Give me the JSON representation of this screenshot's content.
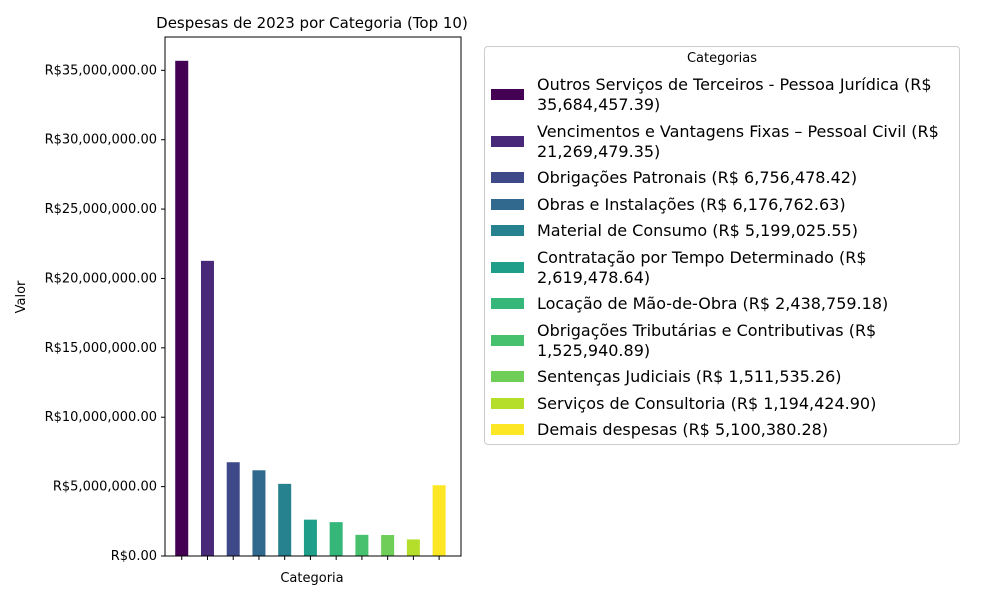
{
  "chart_data": {
    "type": "bar",
    "title": "Despesas de 2023 por Categoria (Top 10)",
    "xlabel": "Categoria",
    "ylabel": "Valor",
    "ylim": [
      0,
      37400000
    ],
    "yticks": [
      0,
      5000000,
      10000000,
      15000000,
      20000000,
      25000000,
      30000000,
      35000000
    ],
    "ytick_labels": [
      "R$0.00",
      "R$5,000,000.00",
      "R$10,000,000.00",
      "R$15,000,000.00",
      "R$20,000,000.00",
      "R$25,000,000.00",
      "R$30,000,000.00",
      "R$35,000,000.00"
    ],
    "grid": false,
    "legend_position": "right",
    "legend_title": "Categorias",
    "categories": [
      "Outros Serviços de Terceiros - Pessoa Jurídica",
      "Vencimentos e Vantagens Fixas – Pessoal Civil",
      "Obrigações Patronais",
      "Obras e Instalações",
      "Material de Consumo",
      "Contratação por Tempo Determinado",
      "Locação de Mão-de-Obra",
      "Obrigações Tributárias e Contributivas",
      "Sentenças Judiciais",
      "Serviços de Consultoria",
      "Demais despesas"
    ],
    "values": [
      35684457.39,
      21269479.35,
      6756478.42,
      6176762.63,
      5199025.55,
      2619478.64,
      2438759.18,
      1525940.89,
      1511535.26,
      1194424.9,
      5100380.28
    ],
    "colors": [
      "#440154",
      "#482878",
      "#3e4989",
      "#31688e",
      "#26828e",
      "#1f9e89",
      "#35b779",
      "#48c16e",
      "#6ece58",
      "#b5de2b",
      "#fde725"
    ],
    "legend_entries": [
      [
        "Outros Serviços de Terceiros - Pessoa Jurídica (R$",
        "35,684,457.39)"
      ],
      [
        "Vencimentos e Vantagens Fixas – Pessoal Civil (R$",
        "21,269,479.35)"
      ],
      [
        "Obrigações Patronais (R$ 6,756,478.42)"
      ],
      [
        "Obras e Instalações (R$ 6,176,762.63)"
      ],
      [
        "Material de Consumo (R$ 5,199,025.55)"
      ],
      [
        "Contratação por Tempo Determinado (R$",
        "2,619,478.64)"
      ],
      [
        "Locação de Mão-de-Obra (R$ 2,438,759.18)"
      ],
      [
        "Obrigações Tributárias e Contributivas (R$",
        "1,525,940.89)"
      ],
      [
        "Sentenças Judiciais (R$ 1,511,535.26)"
      ],
      [
        "Serviços de Consultoria (R$ 1,194,424.90)"
      ],
      [
        "Demais despesas (R$ 5,100,380.28)"
      ]
    ]
  }
}
